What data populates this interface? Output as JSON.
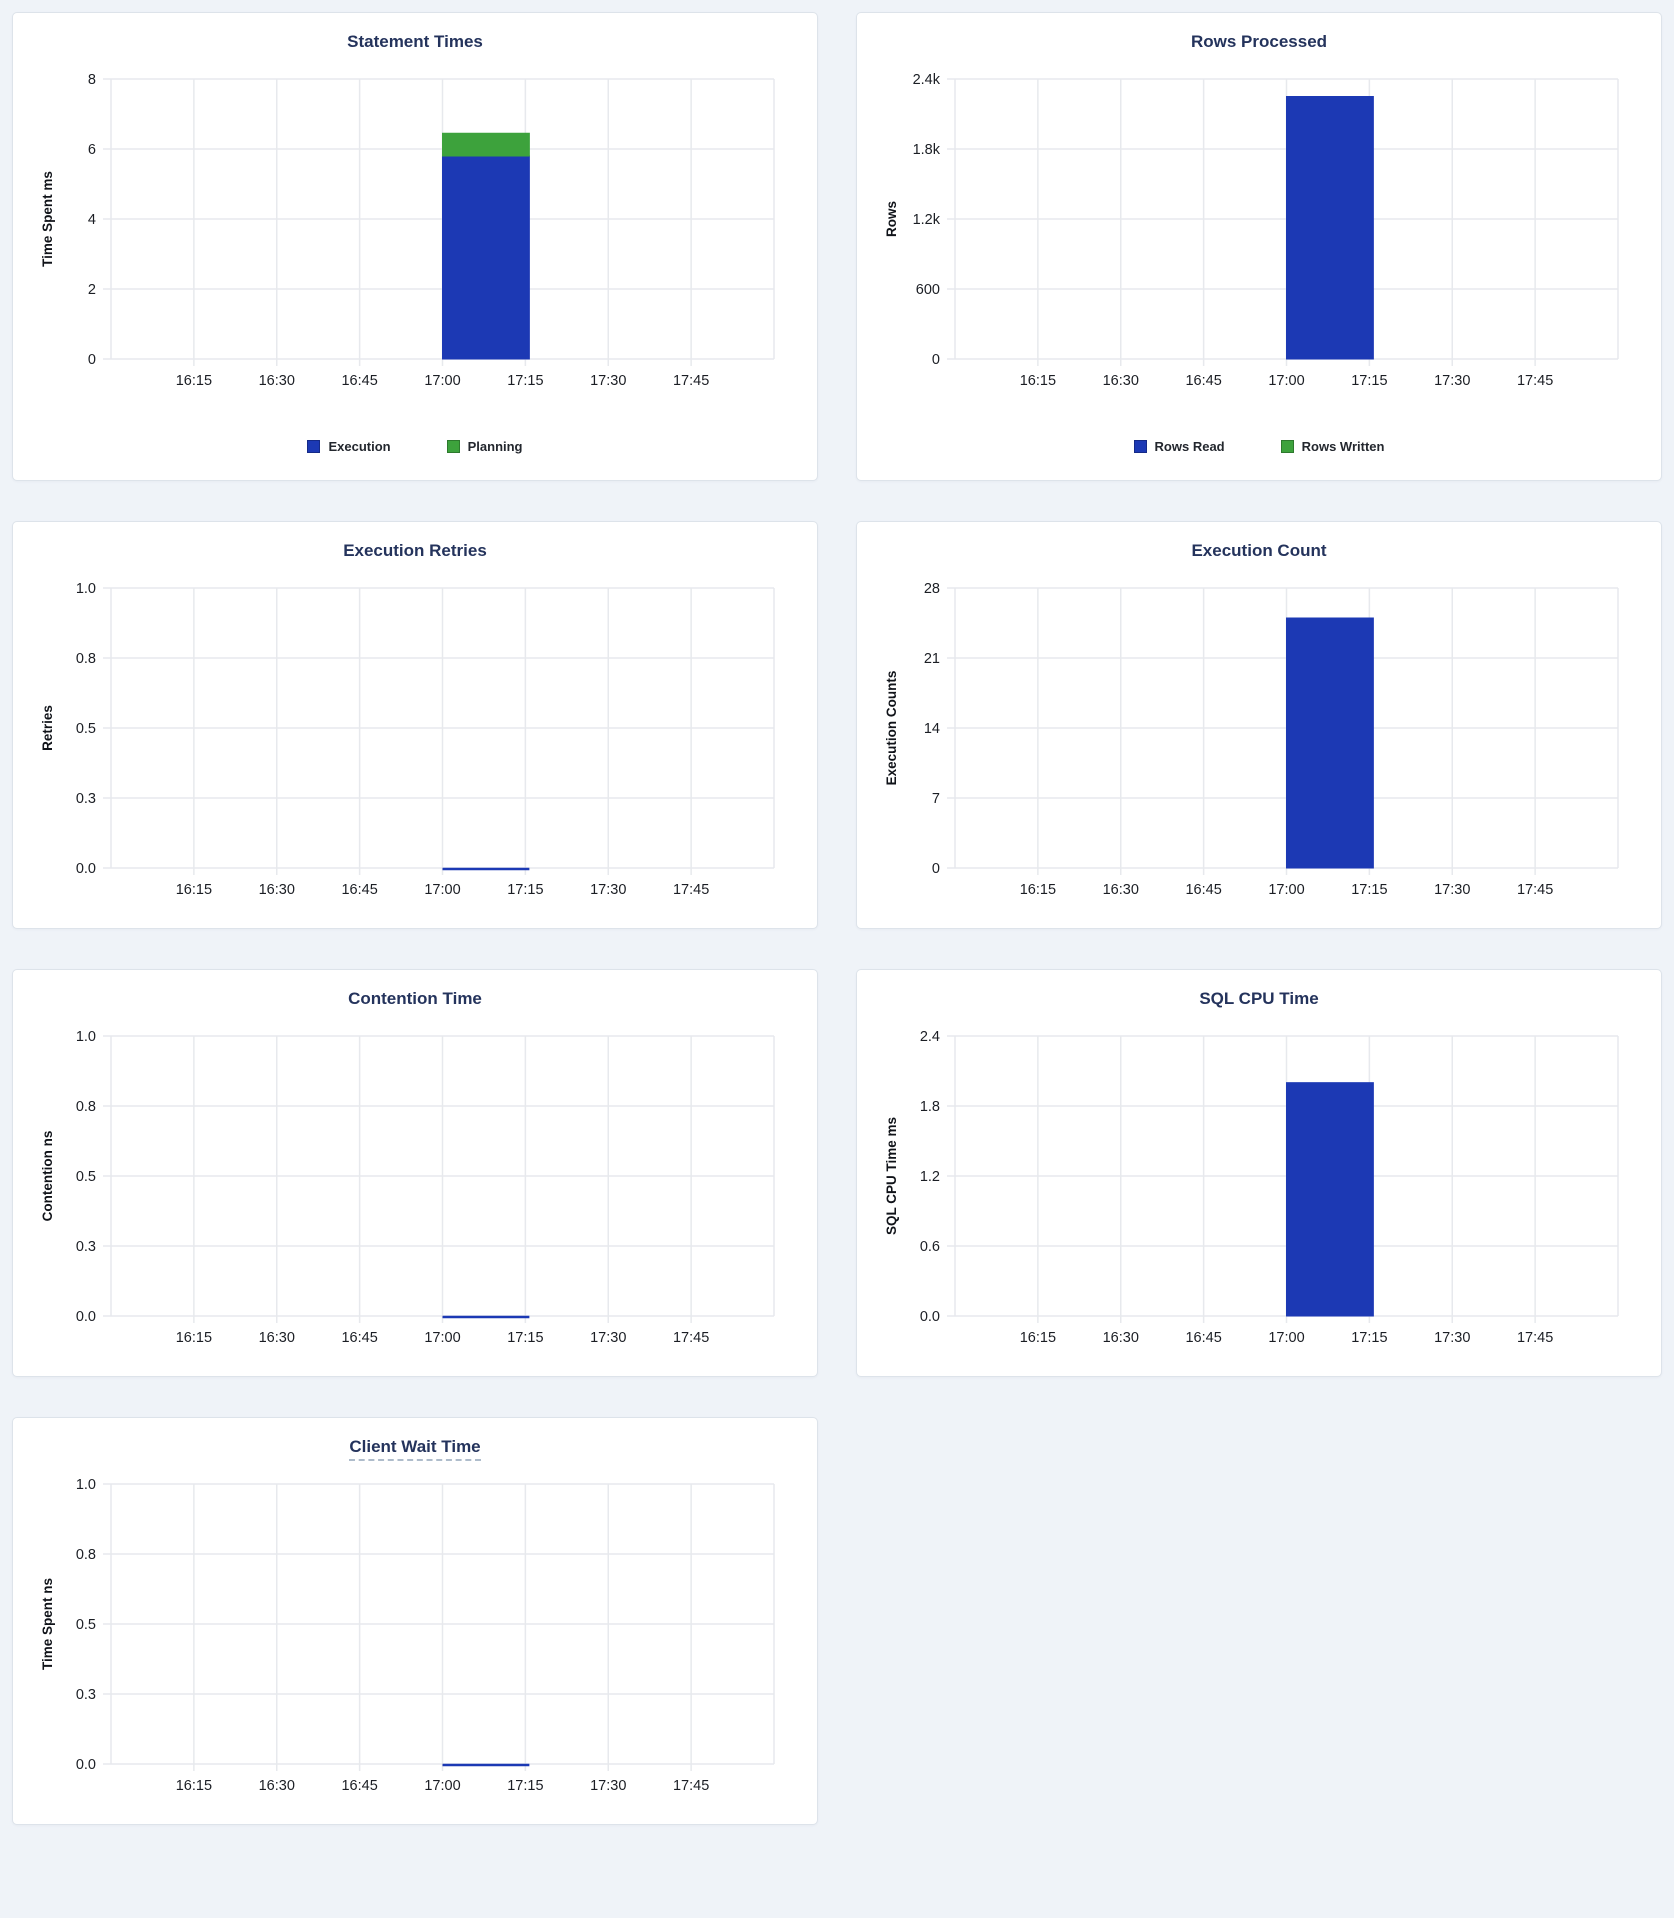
{
  "page": {
    "background_color": "#eff3f8"
  },
  "palette": {
    "blue": "#1c39b4",
    "green": "#3da23c",
    "title_color": "#24335c",
    "grid_color": "#e7e9ed",
    "axis_text_color": "#1b1e24",
    "card_border_color": "#dde3ea",
    "card_background": "#ffffff",
    "underline_color": "#aebccb"
  },
  "x_axis": {
    "tick_labels": [
      "16:15",
      "16:30",
      "16:45",
      "17:00",
      "17:15",
      "17:30",
      "17:45"
    ]
  },
  "chart_data": [
    {
      "id": "statement-times",
      "type": "bar",
      "title": "Statement Times",
      "title_underlined": false,
      "ylabel": "Time Spent ms",
      "ylim": [
        0,
        8
      ],
      "ytick_labels": [
        "8",
        "6",
        "4",
        "2",
        "0"
      ],
      "x_window": {
        "start": "17:00",
        "end": "17:15"
      },
      "grid": true,
      "legend_position": "bottom",
      "series": [
        {
          "name": "Execution",
          "color": "blue",
          "value": 5.8
        },
        {
          "name": "Planning",
          "color": "green",
          "value": 0.65
        }
      ],
      "legend": [
        {
          "label": "Execution",
          "color": "blue"
        },
        {
          "label": "Planning",
          "color": "green"
        }
      ]
    },
    {
      "id": "rows-processed",
      "type": "bar",
      "title": "Rows Processed",
      "title_underlined": false,
      "ylabel": "Rows",
      "ylim": [
        0,
        2400
      ],
      "ytick_labels": [
        "2.4k",
        "1.8k",
        "1.2k",
        "600",
        "0"
      ],
      "x_window": {
        "start": "17:00",
        "end": "17:15"
      },
      "grid": true,
      "legend_position": "bottom",
      "series": [
        {
          "name": "Rows Read",
          "color": "blue",
          "value": 2250
        },
        {
          "name": "Rows Written",
          "color": "green",
          "value": 0
        }
      ],
      "legend": [
        {
          "label": "Rows Read",
          "color": "blue"
        },
        {
          "label": "Rows Written",
          "color": "green"
        }
      ]
    },
    {
      "id": "execution-retries",
      "type": "bar",
      "title": "Execution Retries",
      "title_underlined": false,
      "ylabel": "Retries",
      "ylim": [
        0,
        1.0
      ],
      "ytick_labels": [
        "1.0",
        "0.8",
        "0.5",
        "0.3",
        "0.0"
      ],
      "x_window": {
        "start": "17:00",
        "end": "17:15"
      },
      "grid": true,
      "series": [
        {
          "color": "blue",
          "value": 0
        }
      ]
    },
    {
      "id": "execution-count",
      "type": "bar",
      "title": "Execution Count",
      "title_underlined": false,
      "ylabel": "Execution Counts",
      "ylim": [
        0,
        28
      ],
      "ytick_labels": [
        "28",
        "21",
        "14",
        "7",
        "0"
      ],
      "x_window": {
        "start": "17:00",
        "end": "17:15"
      },
      "grid": true,
      "series": [
        {
          "color": "blue",
          "value": 25
        }
      ]
    },
    {
      "id": "contention-time",
      "type": "bar",
      "title": "Contention Time",
      "title_underlined": false,
      "ylabel": "Contention ns",
      "ylim": [
        0,
        1.0
      ],
      "ytick_labels": [
        "1.0",
        "0.8",
        "0.5",
        "0.3",
        "0.0"
      ],
      "x_window": {
        "start": "17:00",
        "end": "17:15"
      },
      "grid": true,
      "series": [
        {
          "color": "blue",
          "value": 0
        }
      ]
    },
    {
      "id": "sql-cpu-time",
      "type": "bar",
      "title": "SQL CPU Time",
      "title_underlined": false,
      "ylabel": "SQL CPU Time ms",
      "ylim": [
        0,
        2.4
      ],
      "ytick_labels": [
        "2.4",
        "1.8",
        "1.2",
        "0.6",
        "0.0"
      ],
      "x_window": {
        "start": "17:00",
        "end": "17:15"
      },
      "grid": true,
      "series": [
        {
          "color": "blue",
          "value": 2.0
        }
      ]
    },
    {
      "id": "client-wait-time",
      "type": "bar",
      "title": "Client Wait Time",
      "title_underlined": true,
      "ylabel": "Time Spent ns",
      "ylim": [
        0,
        1.0
      ],
      "ytick_labels": [
        "1.0",
        "0.8",
        "0.5",
        "0.3",
        "0.0"
      ],
      "x_window": {
        "start": "17:00",
        "end": "17:15"
      },
      "grid": true,
      "series": [
        {
          "color": "blue",
          "value": 0
        }
      ]
    }
  ]
}
